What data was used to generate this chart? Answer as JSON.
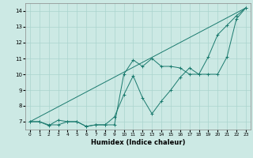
{
  "xlabel": "Humidex (Indice chaleur)",
  "background_color": "#cce9e4",
  "grid_color": "#aad4ce",
  "line_color": "#1a7a6e",
  "x_values": [
    0,
    1,
    2,
    3,
    4,
    5,
    6,
    7,
    8,
    9,
    10,
    11,
    12,
    13,
    14,
    15,
    16,
    17,
    18,
    19,
    20,
    21,
    22,
    23
  ],
  "line1": [
    7.0,
    7.0,
    6.8,
    6.8,
    7.0,
    7.0,
    6.7,
    6.8,
    6.8,
    6.8,
    10.0,
    10.9,
    10.5,
    11.0,
    10.5,
    10.5,
    10.4,
    10.0,
    10.0,
    11.1,
    12.5,
    13.1,
    13.7,
    14.2
  ],
  "line2": [
    7.0,
    7.0,
    6.75,
    7.1,
    7.0,
    7.0,
    6.7,
    6.8,
    6.8,
    7.3,
    8.7,
    9.9,
    8.5,
    7.5,
    8.3,
    9.0,
    9.8,
    10.4,
    10.0,
    10.0,
    10.0,
    11.1,
    13.5,
    14.2
  ],
  "line3": [
    7.0,
    23,
    14.2
  ],
  "ylim": [
    6.5,
    14.5
  ],
  "xlim": [
    -0.5,
    23.5
  ],
  "yticks": [
    7,
    8,
    9,
    10,
    11,
    12,
    13,
    14
  ],
  "xticks": [
    0,
    1,
    2,
    3,
    4,
    5,
    6,
    7,
    8,
    9,
    10,
    11,
    12,
    13,
    14,
    15,
    16,
    17,
    18,
    19,
    20,
    21,
    22,
    23
  ]
}
